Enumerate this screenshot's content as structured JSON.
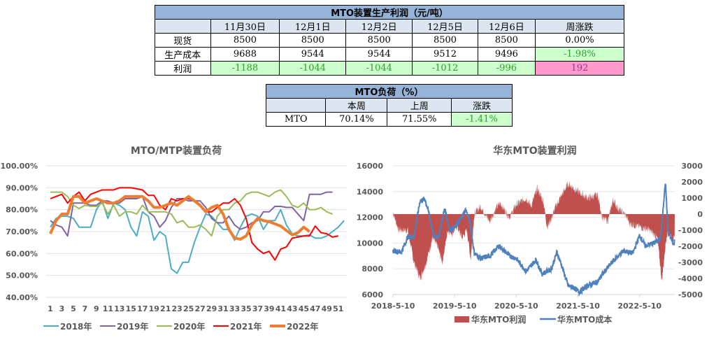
{
  "profit_table": {
    "title": "MTO装置生产利润（元/吨）",
    "headers": [
      "",
      "11月30日",
      "12月1日",
      "12月2日",
      "12月5日",
      "12月6日",
      "周涨跌"
    ],
    "rows": [
      {
        "label": "现货",
        "values": [
          "8500",
          "8500",
          "8500",
          "8500",
          "8500",
          "0.00%"
        ]
      },
      {
        "label": "生产成本",
        "values": [
          "9688",
          "9544",
          "9544",
          "9512",
          "9496",
          "-1.98%"
        ]
      },
      {
        "label": "利润",
        "values": [
          "-1188",
          "-1044",
          "-1044",
          "-1012",
          "-996",
          "192"
        ]
      }
    ]
  },
  "load_table": {
    "title": "MTO负荷（%）",
    "headers": [
      "",
      "本周",
      "上周",
      "涨跌"
    ],
    "row": {
      "label": "MTO",
      "values": [
        "70.14%",
        "71.55%",
        "-1.41%"
      ]
    }
  },
  "colors": {
    "green_cell": "#ccffcc",
    "pink_cell": "#ff99cc",
    "header": "#95b3d7"
  },
  "chart_data": [
    {
      "type": "line",
      "title": "MTO/MTP装置负荷",
      "ylim": [
        40,
        100
      ],
      "yticks": [
        "100.00%",
        "90.00%",
        "80.00%",
        "70.00%",
        "60.00%",
        "50.00%",
        "40.00%"
      ],
      "xticks": [
        "1",
        "3",
        "5",
        "7",
        "9",
        "11",
        "13",
        "15",
        "17",
        "19",
        "21",
        "23",
        "25",
        "27",
        "29",
        "31",
        "33",
        "35",
        "37",
        "39",
        "41",
        "43",
        "45",
        "47",
        "49",
        "51"
      ],
      "legend": "bottom",
      "grid": true,
      "series": [
        {
          "name": "2018年",
          "color": "#4bacc6",
          "width": 2,
          "values": [
            72,
            76,
            77,
            77,
            76,
            72,
            72,
            72,
            80,
            84,
            76,
            83,
            82,
            80,
            72,
            68,
            79,
            77,
            66,
            70,
            68,
            53,
            51,
            56,
            56,
            65,
            72,
            78,
            77,
            74,
            71,
            71,
            66,
            72,
            77,
            78,
            77,
            71,
            75,
            75,
            80,
            73,
            69,
            68,
            68,
            68.5,
            67,
            67,
            68,
            70,
            72,
            75
          ]
        },
        {
          "name": "2019年",
          "color": "#8064a2",
          "width": 2,
          "values": [
            75,
            73,
            72,
            68,
            83,
            83,
            83,
            82,
            82,
            84,
            84,
            83,
            83,
            85,
            85,
            85,
            86,
            79,
            77,
            72,
            75,
            81,
            85,
            85,
            84,
            84,
            84,
            81,
            76,
            74,
            74,
            77,
            73,
            71,
            72,
            74,
            75,
            79,
            79,
            81.5,
            81.5,
            81,
            81,
            78,
            75,
            87,
            87,
            87,
            88,
            88
          ]
        },
        {
          "name": "2020年",
          "color": "#9bbb59",
          "width": 2,
          "values": [
            88,
            88,
            88,
            86,
            82,
            80.5,
            82,
            81.5,
            81.5,
            83,
            78,
            82,
            77,
            79,
            79,
            78,
            82,
            79,
            79,
            79,
            79,
            78,
            74,
            75,
            72,
            72,
            73,
            71,
            68,
            77,
            80,
            80,
            83,
            84,
            87,
            88,
            88,
            87,
            86,
            88,
            89,
            86,
            82,
            81,
            83,
            80,
            80,
            81,
            79,
            78
          ]
        },
        {
          "name": "2021年",
          "color": "#ff0000",
          "width": 2,
          "values": [
            85,
            86,
            87,
            83,
            86,
            88,
            84,
            87,
            88,
            89,
            89,
            89,
            90,
            90,
            90,
            89.5,
            89,
            86.5,
            86.5,
            82,
            80,
            85,
            84,
            85,
            85,
            84,
            82,
            79,
            79,
            81,
            83,
            83,
            85,
            82,
            76,
            65,
            62,
            60,
            61,
            57,
            62,
            63,
            67,
            67.5,
            68,
            68,
            72.5,
            69.5,
            69,
            67.5,
            68
          ]
        },
        {
          "name": "2022年",
          "color": "#ed7d31",
          "width": 4,
          "values": [
            69,
            75,
            78,
            78,
            86,
            86,
            83,
            84,
            85,
            84,
            83,
            83,
            84,
            86,
            86,
            86,
            86,
            84,
            81,
            81,
            82,
            83,
            82,
            84,
            86,
            84,
            82,
            79,
            81,
            82,
            78,
            71,
            67,
            66.5,
            68,
            73,
            76,
            75,
            74.5,
            73.5,
            72.5,
            70.5,
            68.5,
            69.5,
            72,
            70
          ]
        }
      ]
    },
    {
      "type": "area+line",
      "title": "华东MTO装置利润",
      "ylim_left": [
        6000,
        16000
      ],
      "ylim_right": [
        -5000,
        3000
      ],
      "yticks_left": [
        "16000",
        "14000",
        "12000",
        "10000",
        "8000",
        "6000"
      ],
      "yticks_right": [
        "3000",
        "2000",
        "1000",
        "0",
        "-1000",
        "-2000",
        "-3000",
        "-4000",
        "-5000"
      ],
      "xticks": [
        "2018-5-10",
        "2019-5-10",
        "2020-5-10",
        "2021-5-10",
        "2022-5-10"
      ],
      "legend": "bottom",
      "profit": {
        "name": "华东MTO利润",
        "color": "#c0504d",
        "points": [
          [
            2018.36,
            100
          ],
          [
            2018.45,
            -1000
          ],
          [
            2018.6,
            -1000
          ],
          [
            2018.7,
            -3000
          ],
          [
            2018.8,
            -4000
          ],
          [
            2018.9,
            -3000
          ],
          [
            2019.0,
            -1500
          ],
          [
            2019.08,
            -2000
          ],
          [
            2019.16,
            -3000
          ],
          [
            2019.25,
            -1000
          ],
          [
            2019.32,
            -1200
          ],
          [
            2019.4,
            -800
          ],
          [
            2019.48,
            -1500
          ],
          [
            2019.56,
            -1000
          ],
          [
            2019.62,
            -2800
          ],
          [
            2019.68,
            0
          ],
          [
            2019.78,
            500
          ],
          [
            2019.93,
            -500
          ],
          [
            2020.02,
            300
          ],
          [
            2020.1,
            700
          ],
          [
            2020.25,
            -200
          ],
          [
            2020.36,
            600
          ],
          [
            2020.52,
            1000
          ],
          [
            2020.6,
            500
          ],
          [
            2020.7,
            1600
          ],
          [
            2020.8,
            800
          ],
          [
            2020.86,
            -800
          ],
          [
            2020.93,
            -300
          ],
          [
            2021.0,
            500
          ],
          [
            2021.1,
            1200
          ],
          [
            2021.2,
            1900
          ],
          [
            2021.36,
            1400
          ],
          [
            2021.52,
            1000
          ],
          [
            2021.68,
            1200
          ],
          [
            2021.76,
            -300
          ],
          [
            2021.85,
            -400
          ],
          [
            2021.93,
            900
          ],
          [
            2022.02,
            300
          ],
          [
            2022.12,
            0
          ],
          [
            2022.2,
            -600
          ],
          [
            2022.36,
            -800
          ],
          [
            2022.52,
            -1000
          ],
          [
            2022.65,
            -1500
          ],
          [
            2022.72,
            -4200
          ],
          [
            2022.8,
            -1200
          ],
          [
            2022.88,
            -1500
          ],
          [
            2022.93,
            -1600
          ]
        ]
      },
      "cost": {
        "name": "华东MTO成本",
        "color": "#4f81bd",
        "points": [
          [
            2018.36,
            9400
          ],
          [
            2018.5,
            9300
          ],
          [
            2018.6,
            10500
          ],
          [
            2018.7,
            10500
          ],
          [
            2018.8,
            13300
          ],
          [
            2018.88,
            13400
          ],
          [
            2018.95,
            12200
          ],
          [
            2019.02,
            10500
          ],
          [
            2019.1,
            10500
          ],
          [
            2019.2,
            12700
          ],
          [
            2019.28,
            11000
          ],
          [
            2019.36,
            11200
          ],
          [
            2019.45,
            11800
          ],
          [
            2019.54,
            12600
          ],
          [
            2019.6,
            11800
          ],
          [
            2019.68,
            9200
          ],
          [
            2019.78,
            8800
          ],
          [
            2019.93,
            9000
          ],
          [
            2020.08,
            9800
          ],
          [
            2020.25,
            9000
          ],
          [
            2020.36,
            8800
          ],
          [
            2020.52,
            7800
          ],
          [
            2020.68,
            8700
          ],
          [
            2020.78,
            7600
          ],
          [
            2020.93,
            8000
          ],
          [
            2021.02,
            9300
          ],
          [
            2021.1,
            8200
          ],
          [
            2021.2,
            6700
          ],
          [
            2021.3,
            6500
          ],
          [
            2021.38,
            6200
          ],
          [
            2021.52,
            6700
          ],
          [
            2021.68,
            7000
          ],
          [
            2021.76,
            7600
          ],
          [
            2021.93,
            8600
          ],
          [
            2022.1,
            9400
          ],
          [
            2022.25,
            9200
          ],
          [
            2022.36,
            10600
          ],
          [
            2022.45,
            9800
          ],
          [
            2022.6,
            10000
          ],
          [
            2022.7,
            10400
          ],
          [
            2022.78,
            14700
          ],
          [
            2022.82,
            11000
          ],
          [
            2022.88,
            10300
          ],
          [
            2022.92,
            9800
          ],
          [
            2022.93,
            10500
          ]
        ]
      }
    }
  ]
}
